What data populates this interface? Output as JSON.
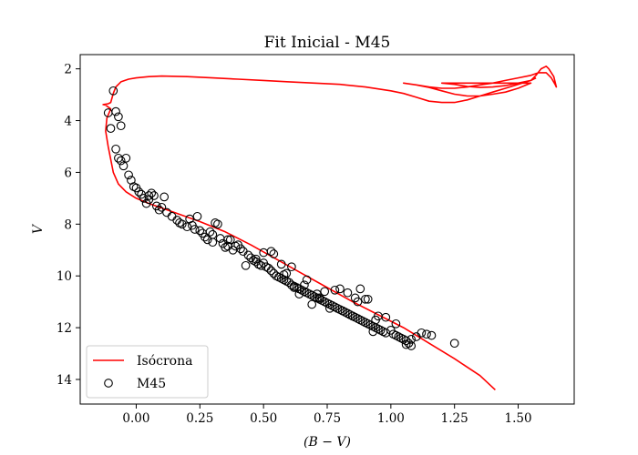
{
  "chart_data": {
    "type": "scatter",
    "title": "Fit Inicial - M45",
    "xlabel": "(B − V)",
    "ylabel": "V",
    "xlim": [
      -0.22,
      1.72
    ],
    "ylim": [
      14.95,
      1.45
    ],
    "y_inverted": true,
    "grid": false,
    "legend_position": "lower-left",
    "x_ticks": [
      0.0,
      0.25,
      0.5,
      0.75,
      1.0,
      1.25,
      1.5
    ],
    "x_tick_labels": [
      "0.00",
      "0.25",
      "0.50",
      "0.75",
      "1.00",
      "1.25",
      "1.50"
    ],
    "y_ticks": [
      2,
      4,
      6,
      8,
      10,
      12,
      14
    ],
    "y_tick_labels": [
      "2",
      "4",
      "6",
      "8",
      "10",
      "12",
      "14"
    ],
    "series": [
      {
        "name": "Isócrona",
        "kind": "line",
        "color": "#ff0000",
        "x": [
          1.41,
          1.35,
          1.25,
          1.15,
          1.05,
          0.95,
          0.85,
          0.75,
          0.65,
          0.55,
          0.45,
          0.35,
          0.25,
          0.15,
          0.05,
          0.0,
          -0.04,
          -0.07,
          -0.09,
          -0.1,
          -0.11,
          -0.12,
          -0.115,
          -0.1,
          -0.12,
          -0.13,
          -0.11,
          -0.1,
          -0.09,
          -0.08,
          -0.06,
          -0.03,
          0.0,
          0.05,
          0.1,
          0.2,
          0.3,
          0.4,
          0.5,
          0.6,
          0.7,
          0.8,
          0.9,
          1.0,
          1.05,
          1.1,
          1.15,
          1.2,
          1.25,
          1.3,
          1.35,
          1.4,
          1.45,
          1.5,
          1.55,
          1.57,
          1.59,
          1.61,
          1.62,
          1.63,
          1.64,
          1.65,
          1.645,
          1.63,
          1.61,
          1.58,
          1.55,
          1.5,
          1.45,
          1.4,
          1.35,
          1.3,
          1.25,
          1.2,
          1.15,
          1.1,
          1.05,
          1.1,
          1.15,
          1.2,
          1.25,
          1.3,
          1.35,
          1.4,
          1.45,
          1.5,
          1.55,
          1.2,
          1.25,
          1.3,
          1.35,
          1.4,
          1.45,
          1.5,
          1.55,
          1.57
        ],
        "y": [
          14.4,
          13.85,
          13.2,
          12.6,
          12.0,
          11.5,
          11.0,
          10.45,
          9.9,
          9.35,
          8.8,
          8.3,
          7.9,
          7.55,
          7.2,
          7.0,
          6.75,
          6.45,
          6.0,
          5.5,
          5.0,
          4.4,
          3.9,
          3.55,
          3.4,
          3.38,
          3.35,
          3.3,
          2.95,
          2.7,
          2.5,
          2.4,
          2.35,
          2.3,
          2.28,
          2.3,
          2.35,
          2.4,
          2.45,
          2.5,
          2.55,
          2.6,
          2.7,
          2.85,
          2.95,
          3.1,
          3.25,
          3.3,
          3.3,
          3.2,
          3.05,
          2.9,
          2.75,
          2.6,
          2.45,
          2.25,
          2.0,
          1.9,
          2.0,
          2.15,
          2.3,
          2.7,
          2.6,
          2.35,
          2.15,
          2.15,
          2.25,
          2.35,
          2.45,
          2.55,
          2.62,
          2.7,
          2.75,
          2.75,
          2.7,
          2.62,
          2.55,
          2.62,
          2.72,
          2.85,
          2.98,
          3.05,
          3.05,
          2.98,
          2.9,
          2.75,
          2.55,
          2.55,
          2.6,
          2.68,
          2.72,
          2.7,
          2.65,
          2.55,
          2.45,
          2.35
        ]
      },
      {
        "name": "M45",
        "kind": "scatter",
        "marker": "open-circle",
        "color": "#000000",
        "x": [
          -0.09,
          -0.08,
          -0.07,
          -0.06,
          -0.11,
          -0.1,
          -0.08,
          -0.07,
          -0.06,
          -0.05,
          -0.04,
          -0.03,
          -0.02,
          -0.01,
          0.0,
          0.01,
          0.02,
          0.03,
          0.04,
          0.05,
          0.06,
          0.07,
          0.08,
          0.09,
          0.1,
          0.12,
          0.14,
          0.16,
          0.17,
          0.18,
          0.2,
          0.21,
          0.22,
          0.23,
          0.25,
          0.26,
          0.27,
          0.28,
          0.29,
          0.3,
          0.31,
          0.32,
          0.33,
          0.34,
          0.35,
          0.36,
          0.37,
          0.38,
          0.4,
          0.42,
          0.44,
          0.45,
          0.46,
          0.47,
          0.48,
          0.49,
          0.5,
          0.51,
          0.52,
          0.53,
          0.54,
          0.55,
          0.56,
          0.57,
          0.58,
          0.59,
          0.6,
          0.61,
          0.62,
          0.63,
          0.64,
          0.65,
          0.66,
          0.67,
          0.68,
          0.69,
          0.7,
          0.71,
          0.72,
          0.73,
          0.74,
          0.75,
          0.76,
          0.77,
          0.78,
          0.79,
          0.8,
          0.81,
          0.82,
          0.83,
          0.84,
          0.85,
          0.86,
          0.87,
          0.88,
          0.89,
          0.9,
          0.91,
          0.92,
          0.93,
          0.94,
          0.95,
          0.96,
          0.97,
          0.98,
          1.0,
          1.01,
          1.02,
          1.03,
          1.04,
          1.05,
          1.06,
          1.07,
          1.08,
          1.1,
          1.12,
          1.14,
          1.16,
          1.25,
          0.36,
          0.39,
          0.43,
          0.5,
          0.53,
          0.57,
          0.61,
          0.67,
          0.72,
          0.78,
          0.83,
          0.88,
          0.91,
          0.95,
          0.62,
          0.69,
          0.74,
          0.8,
          0.86,
          0.9,
          0.98,
          1.02,
          0.47,
          0.54,
          0.59,
          0.64,
          0.76,
          0.81,
          0.87,
          0.94,
          1.08,
          0.05,
          0.11,
          0.24,
          0.3,
          0.41,
          0.58,
          0.66,
          0.71,
          0.85,
          0.93,
          1.06
        ],
        "y": [
          2.85,
          3.65,
          3.85,
          4.2,
          3.7,
          4.3,
          5.1,
          5.45,
          5.55,
          5.75,
          5.45,
          6.1,
          6.3,
          6.55,
          6.6,
          6.75,
          6.85,
          7.0,
          7.2,
          7.05,
          6.8,
          6.9,
          7.3,
          7.45,
          7.35,
          7.55,
          7.7,
          7.85,
          7.95,
          8.0,
          8.1,
          7.8,
          8.05,
          8.2,
          8.25,
          8.35,
          8.5,
          8.6,
          8.3,
          8.7,
          7.95,
          8.0,
          8.55,
          8.75,
          8.9,
          8.85,
          8.6,
          9.0,
          8.8,
          9.05,
          9.2,
          9.3,
          9.4,
          9.35,
          9.55,
          9.6,
          9.5,
          9.65,
          9.7,
          9.8,
          9.9,
          10.0,
          10.05,
          10.1,
          10.15,
          10.2,
          10.25,
          10.35,
          10.4,
          10.45,
          10.5,
          10.55,
          10.6,
          10.65,
          10.7,
          10.75,
          10.8,
          10.85,
          10.9,
          10.95,
          11.0,
          11.05,
          11.1,
          11.15,
          11.2,
          11.25,
          11.3,
          11.35,
          11.4,
          11.45,
          11.5,
          11.55,
          11.6,
          11.65,
          11.7,
          11.75,
          11.8,
          11.85,
          11.9,
          11.95,
          12.0,
          12.05,
          12.1,
          12.15,
          12.2,
          12.1,
          12.25,
          12.3,
          12.35,
          12.4,
          12.45,
          12.5,
          12.6,
          12.7,
          12.35,
          12.2,
          12.25,
          12.3,
          12.6,
          8.6,
          8.85,
          9.6,
          9.1,
          9.05,
          9.55,
          9.65,
          10.15,
          10.85,
          10.55,
          10.65,
          10.5,
          10.9,
          11.55,
          10.45,
          11.1,
          10.6,
          10.5,
          10.85,
          10.9,
          11.6,
          11.85,
          9.45,
          9.15,
          9.9,
          10.7,
          11.25,
          11.35,
          11.0,
          11.7,
          12.45,
          6.9,
          6.95,
          7.7,
          8.4,
          8.95,
          9.95,
          10.35,
          10.7,
          11.55,
          12.15,
          12.65
        ]
      }
    ]
  }
}
